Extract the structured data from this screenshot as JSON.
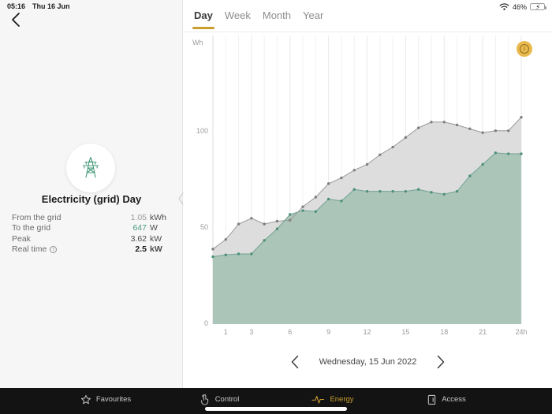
{
  "status_bar": {
    "time": "05:16",
    "date": "Thu 16 Jun",
    "battery_percent": "46%",
    "battery_level": 46,
    "charging": true
  },
  "left_panel": {
    "title": "Electricity (grid) Day",
    "device_icon": "power-pylon-icon",
    "stats": [
      {
        "label": "From the grid",
        "value": "1.05",
        "unit": "kWh",
        "value_color": "#9a9a9a",
        "bold": false,
        "has_info": false
      },
      {
        "label": "To the grid",
        "value": "647",
        "unit": "W",
        "value_color": "#4a9c7c",
        "bold": false,
        "has_info": false
      },
      {
        "label": "Peak",
        "value": "3.62",
        "unit": "kW",
        "value_color": "#4c4c4c",
        "bold": false,
        "has_info": false
      },
      {
        "label": "Real time",
        "value": "2.5",
        "unit": "kW",
        "value_color": "#1c1c1c",
        "bold": true,
        "has_info": true
      }
    ]
  },
  "tabs": [
    {
      "label": "Day",
      "active": true
    },
    {
      "label": "Week",
      "active": false
    },
    {
      "label": "Month",
      "active": false
    },
    {
      "label": "Year",
      "active": false
    }
  ],
  "chart_data": {
    "type": "area",
    "unit_label": "Wh",
    "x_hours": [
      0,
      1,
      2,
      3,
      4,
      5,
      6,
      7,
      8,
      9,
      10,
      11,
      12,
      13,
      14,
      15,
      16,
      17,
      18,
      19,
      20,
      21,
      22,
      23,
      24
    ],
    "series": [
      {
        "name": "from-grid-total",
        "color": "#9a9a9a",
        "marker": "#7f7f7f",
        "fill": "#dbdbdb",
        "fill_opacity": 0.95,
        "values": [
          39,
          44,
          52,
          55,
          52,
          53.5,
          54,
          61,
          66,
          73,
          76,
          80,
          83,
          88,
          92,
          97,
          102,
          105,
          105,
          103.5,
          101.5,
          99.5,
          100.5,
          100.5,
          107.5
        ]
      },
      {
        "name": "consumption-green",
        "color": "#72a493",
        "marker": "#4c9078",
        "fill": "#a7c2b5",
        "fill_opacity": 0.92,
        "values": [
          35,
          36,
          36.5,
          36.5,
          43.5,
          49.5,
          57,
          59,
          58.5,
          65,
          64,
          70,
          69,
          69,
          69,
          69,
          70,
          68.5,
          67.5,
          69,
          77,
          83,
          89,
          88.5,
          88.5
        ]
      }
    ],
    "ylim": [
      0,
      150
    ],
    "yticks": [
      0,
      50,
      100
    ],
    "xticks": [
      {
        "h": 1,
        "label": "1"
      },
      {
        "h": 3,
        "label": "3"
      },
      {
        "h": 6,
        "label": "6"
      },
      {
        "h": 9,
        "label": "9"
      },
      {
        "h": 12,
        "label": "12"
      },
      {
        "h": 15,
        "label": "15"
      },
      {
        "h": 18,
        "label": "18"
      },
      {
        "h": 21,
        "label": "21"
      },
      {
        "h": 24,
        "label": "24h"
      }
    ],
    "grid": "vertical-hourly",
    "legend": "none"
  },
  "date_nav": {
    "label": "Wednesday, 15 Jun 2022"
  },
  "bottom_nav": [
    {
      "label": "Favourites",
      "icon": "star-icon",
      "active": false
    },
    {
      "label": "Control",
      "icon": "tap-hand-icon",
      "active": false
    },
    {
      "label": "Energy",
      "icon": "pulse-icon",
      "active": true
    },
    {
      "label": "Access",
      "icon": "door-icon",
      "active": false
    }
  ],
  "colors": {
    "gold": "#c99d2e",
    "tab-underline": "#dfa32a",
    "info-gold": "#eab94d",
    "green": "#4a9c7c",
    "battery-green": "#55cd5d"
  }
}
